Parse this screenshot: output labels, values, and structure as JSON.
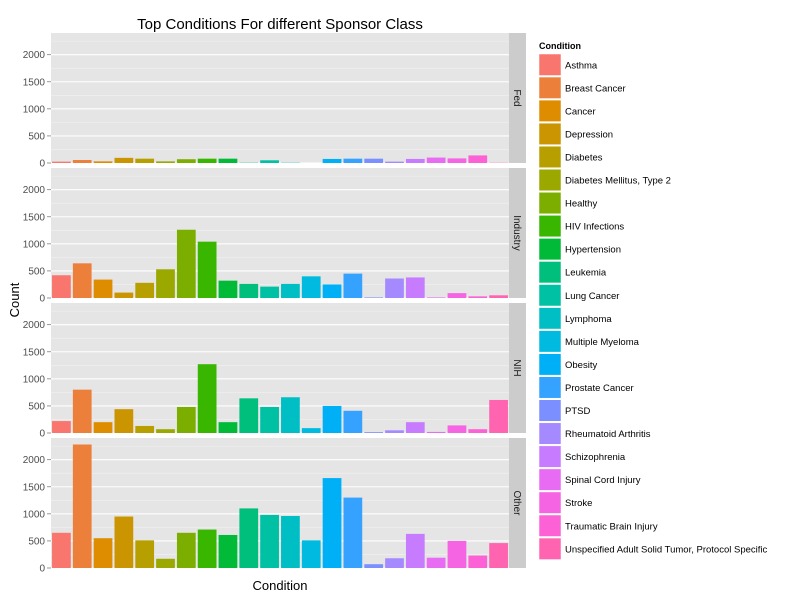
{
  "chart_data": {
    "type": "bar",
    "title": "Top Conditions For different Sponsor Class",
    "xlabel": "Condition",
    "ylabel": "Count",
    "ylim": [
      0,
      2400
    ],
    "yticks": [
      0,
      500,
      1000,
      1500,
      2000
    ],
    "legend": {
      "title": "Condition",
      "position": "right"
    },
    "categories": [
      "Asthma",
      "Breast Cancer",
      "Cancer",
      "Depression",
      "Diabetes",
      "Diabetes Mellitus, Type 2",
      "Healthy",
      "HIV Infections",
      "Hypertension",
      "Leukemia",
      "Lung Cancer",
      "Lymphoma",
      "Multiple Myeloma",
      "Obesity",
      "Prostate Cancer",
      "PTSD",
      "Rheumatoid Arthritis",
      "Schizophrenia",
      "Spinal Cord Injury",
      "Stroke",
      "Traumatic Brain Injury",
      "Unspecified Adult Solid Tumor, Protocol Specific"
    ],
    "colors": [
      "#F8766D",
      "#EC7F3A",
      "#DE8C00",
      "#CA9500",
      "#B79F00",
      "#9AA800",
      "#7CAE00",
      "#39B600",
      "#00BA38",
      "#00BF7D",
      "#00C1A3",
      "#00BFC4",
      "#00BAE0",
      "#00B0F6",
      "#35A2FF",
      "#7B8FFF",
      "#A58AFF",
      "#C77CFF",
      "#E76BF3",
      "#F564E3",
      "#FC61D5",
      "#FF64B0"
    ],
    "panels": [
      {
        "name": "Fed",
        "values": [
          25,
          55,
          30,
          95,
          80,
          30,
          70,
          80,
          80,
          5,
          50,
          5,
          0,
          75,
          80,
          80,
          25,
          75,
          100,
          85,
          140,
          5
        ]
      },
      {
        "name": "Industry",
        "values": [
          420,
          640,
          340,
          100,
          280,
          530,
          1260,
          1040,
          320,
          260,
          210,
          260,
          400,
          250,
          450,
          10,
          360,
          380,
          10,
          90,
          30,
          50
        ]
      },
      {
        "name": "NIH",
        "values": [
          220,
          800,
          200,
          440,
          130,
          70,
          480,
          1270,
          200,
          640,
          480,
          660,
          90,
          500,
          410,
          15,
          50,
          200,
          20,
          140,
          70,
          610
        ]
      },
      {
        "name": "Other",
        "values": [
          650,
          2280,
          550,
          950,
          510,
          170,
          650,
          710,
          610,
          1100,
          980,
          960,
          510,
          1660,
          1300,
          70,
          180,
          630,
          190,
          500,
          230,
          460
        ]
      }
    ]
  }
}
